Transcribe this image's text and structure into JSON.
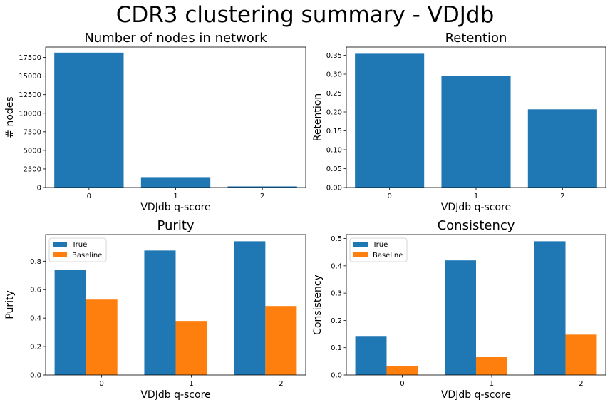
{
  "figure": {
    "title": "CDR3 clustering summary - VDJdb"
  },
  "colors": {
    "true": "#1f77b4",
    "baseline": "#ff7f0e",
    "single": "#1f77b4"
  },
  "chart_data": [
    {
      "type": "bar",
      "title": "Number of nodes in network",
      "xlabel": "VDJdb q-score",
      "ylabel": "# nodes",
      "categories": [
        "0",
        "1",
        "2"
      ],
      "values": [
        18150,
        1400,
        150
      ],
      "ylim": [
        0,
        18900
      ],
      "yticks": [
        0,
        2500,
        5000,
        7500,
        10000,
        12500,
        15000,
        17500
      ],
      "ytick_labels": [
        "0",
        "2500",
        "5000",
        "7500",
        "10000",
        "12500",
        "15000",
        "17500"
      ],
      "grid": false
    },
    {
      "type": "bar",
      "title": "Retention",
      "xlabel": "VDJdb q-score",
      "ylabel": "Retention",
      "categories": [
        "0",
        "1",
        "2"
      ],
      "values": [
        0.354,
        0.296,
        0.207
      ],
      "ylim": [
        0,
        0.3717
      ],
      "yticks": [
        0,
        0.05,
        0.1,
        0.15,
        0.2,
        0.25,
        0.3,
        0.35
      ],
      "ytick_labels": [
        "0.00",
        "0.05",
        "0.10",
        "0.15",
        "0.20",
        "0.25",
        "0.30",
        "0.35"
      ],
      "grid": false
    },
    {
      "type": "bar",
      "title": "Purity",
      "xlabel": "VDJdb q-score",
      "ylabel": "Purity",
      "categories": [
        "0",
        "1",
        "2"
      ],
      "series": [
        {
          "name": "True",
          "values": [
            0.74,
            0.875,
            0.94
          ]
        },
        {
          "name": "Baseline",
          "values": [
            0.53,
            0.38,
            0.485
          ]
        }
      ],
      "ylim": [
        0,
        0.987
      ],
      "yticks": [
        0,
        0.2,
        0.4,
        0.6,
        0.8
      ],
      "ytick_labels": [
        "0.0",
        "0.2",
        "0.4",
        "0.6",
        "0.8"
      ],
      "legend": "upper-left",
      "grid": false
    },
    {
      "type": "bar",
      "title": "Consistency",
      "xlabel": "VDJdb q-score",
      "ylabel": "Consistency",
      "categories": [
        "0",
        "1",
        "2"
      ],
      "series": [
        {
          "name": "True",
          "values": [
            0.143,
            0.42,
            0.49
          ]
        },
        {
          "name": "Baseline",
          "values": [
            0.032,
            0.066,
            0.148
          ]
        }
      ],
      "ylim": [
        0,
        0.5145
      ],
      "yticks": [
        0,
        0.1,
        0.2,
        0.3,
        0.4,
        0.5
      ],
      "ytick_labels": [
        "0.0",
        "0.1",
        "0.2",
        "0.3",
        "0.4",
        "0.5"
      ],
      "legend": "upper-left",
      "grid": false
    }
  ]
}
